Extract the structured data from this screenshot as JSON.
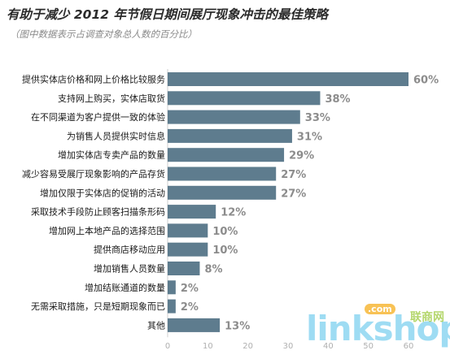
{
  "title": "有助于减少 2012 年节假日期间展厅现象冲击的最佳策略",
  "subtitle": "（图中数据表示占调查对象总人数的百分比）",
  "colors": {
    "bar": "#5e7c8e",
    "value_label": "#8c8c8c",
    "category_label": "#1a1a1a",
    "tick": "#b0b0b0",
    "axis": "#cfcfcf"
  },
  "chart_data": {
    "type": "bar",
    "orientation": "horizontal",
    "title": "有助于减少 2012 年节假日期间展厅现象冲击的最佳策略",
    "subtitle": "（图中数据表示占调查对象总人数的百分比）",
    "categories": [
      "提供实体店价格和网上价格比较服务",
      "支持网上购买，实体店取货",
      "在不同渠道为客户提供一致的体验",
      "为销售人员提供实时信息",
      "增加实体店专卖产品的数量",
      "减少容易受展厅现象影响的产品存货",
      "增加仅限于实体店的促销的活动",
      "采取技术手段防止顾客扫描条形码",
      "增加网上本地产品的选择范围",
      "提供商店移动应用",
      "增加销售人员数量",
      "增加结账通道的数量",
      "无需采取措施，只是短期现象而已",
      "其他"
    ],
    "values": [
      60,
      38,
      33,
      31,
      29,
      27,
      27,
      12,
      10,
      10,
      8,
      2,
      2,
      13
    ],
    "value_labels": [
      "60%",
      "38%",
      "33%",
      "31%",
      "29%",
      "27%",
      "27%",
      "12%",
      "10%",
      "10%",
      "8%",
      "2%",
      "2%",
      "13%"
    ],
    "xticks": [
      0,
      10,
      20,
      30,
      40,
      50,
      60
    ],
    "xlim": [
      0,
      60
    ],
    "xlabel": "",
    "ylabel": "",
    "grid": false,
    "legend": "none"
  },
  "watermark": {
    "text": "linkshop",
    "cn": "联商网",
    "com": ".com"
  }
}
